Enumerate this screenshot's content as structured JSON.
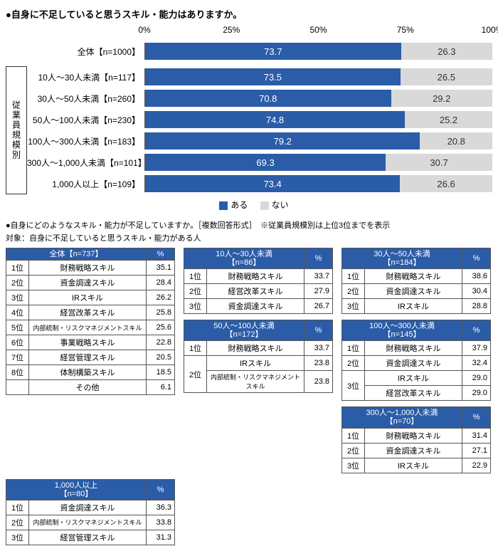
{
  "colors": {
    "primary": "#2b5ca8",
    "secondary": "#d9d9d9",
    "border": "#555555",
    "text_on_primary": "#ffffff",
    "text": "#000000",
    "background": "#ffffff"
  },
  "chart": {
    "title": "●自身に不足していると思うスキル・能力はありますか。",
    "type": "stacked-horizontal-bar",
    "x_axis": {
      "min": 0,
      "max": 100,
      "ticks": [
        0,
        25,
        50,
        75,
        100
      ],
      "tick_labels": [
        "0%",
        "25%",
        "50%",
        "75%",
        "100%"
      ]
    },
    "legend": {
      "yes": "ある",
      "no": "ない"
    },
    "group_label": "従業員規模別",
    "rows": [
      {
        "label": "全体【n=1000】",
        "yes": 73.7,
        "no": 26.3,
        "group": false
      },
      {
        "label": "10人～30人未満【n=117】",
        "yes": 73.5,
        "no": 26.5,
        "group": true
      },
      {
        "label": "30人～50人未満【n=260】",
        "yes": 70.8,
        "no": 29.2,
        "group": true
      },
      {
        "label": "50人～100人未満【n=230】",
        "yes": 74.8,
        "no": 25.2,
        "group": true
      },
      {
        "label": "100人～300人未満【n=183】",
        "yes": 79.2,
        "no": 20.8,
        "group": true
      },
      {
        "label": "300人～1,000人未満【n=101】",
        "yes": 69.3,
        "no": 30.7,
        "group": true
      },
      {
        "label": "1,000人以上【n=109】",
        "yes": 73.4,
        "no": 26.6,
        "group": true
      }
    ]
  },
  "tables": {
    "title": "●自身にどのようなスキル・能力が不足していますか。［複数回答形式］　※従業員規模別は上位3位までを表示",
    "target_note": "対象：自身に不足していると思うスキル・能力がある人",
    "pct_header": "%",
    "overall": {
      "header": "全体【n=737】",
      "rows": [
        {
          "rank": "1位",
          "skill": "財務戦略スキル",
          "pct": 35.1
        },
        {
          "rank": "2位",
          "skill": "資金調達スキル",
          "pct": 28.4
        },
        {
          "rank": "3位",
          "skill": "IRスキル",
          "pct": 26.2
        },
        {
          "rank": "4位",
          "skill": "経営改革スキル",
          "pct": 25.8
        },
        {
          "rank": "5位",
          "skill": "内部統制・リスクマネジメントスキル",
          "pct": 25.6,
          "small": true
        },
        {
          "rank": "6位",
          "skill": "事業戦略スキル",
          "pct": 22.8
        },
        {
          "rank": "7位",
          "skill": "経営管理スキル",
          "pct": 20.5
        },
        {
          "rank": "8位",
          "skill": "体制構築スキル",
          "pct": 18.5
        },
        {
          "rank": "",
          "skill": "その他",
          "pct": 6.1
        }
      ]
    },
    "groups": [
      {
        "header": "10人～30人未満\n【n=86】",
        "rows": [
          {
            "rank": "1位",
            "skill": "財務戦略スキル",
            "pct": 33.7
          },
          {
            "rank": "2位",
            "skill": "経営改革スキル",
            "pct": 27.9
          },
          {
            "rank": "3位",
            "skill": "資金調達スキル",
            "pct": 26.7
          }
        ]
      },
      {
        "header": "30人～50人未満\n【n=184】",
        "rows": [
          {
            "rank": "1位",
            "skill": "財務戦略スキル",
            "pct": 38.6
          },
          {
            "rank": "2位",
            "skill": "資金調達スキル",
            "pct": 30.4
          },
          {
            "rank": "3位",
            "skill": "IRスキル",
            "pct": 28.8
          }
        ]
      },
      {
        "header": "50人～100人未満\n【n=172】",
        "rows": [
          {
            "rank": "1位",
            "skill": "財務戦略スキル",
            "pct": 33.7
          },
          {
            "rank": "2位",
            "rowspan": 2,
            "skill": "IRスキル",
            "pct": 23.8
          },
          {
            "skill": "内部統制・リスクマネジメントスキル",
            "pct": 23.8,
            "small": true
          }
        ]
      },
      {
        "header": "100人～300人未満\n【n=145】",
        "rows": [
          {
            "rank": "1位",
            "skill": "財務戦略スキル",
            "pct": 37.9
          },
          {
            "rank": "2位",
            "skill": "資金調達スキル",
            "pct": 32.4
          },
          {
            "rank": "3位",
            "rowspan": 2,
            "skill": "IRスキル",
            "pct": 29.0
          },
          {
            "skill": "経営改革スキル",
            "pct": 29.0
          }
        ]
      },
      {
        "header": "300人～1,000人未満\n【n=70】",
        "rows": [
          {
            "rank": "1位",
            "skill": "財務戦略スキル",
            "pct": 31.4
          },
          {
            "rank": "2位",
            "skill": "資金調達スキル",
            "pct": 27.1
          },
          {
            "rank": "3位",
            "skill": "IRスキル",
            "pct": 22.9
          }
        ]
      },
      {
        "header": "1,000人以上\n【n=80】",
        "rows": [
          {
            "rank": "1位",
            "skill": "資金調達スキル",
            "pct": 36.3
          },
          {
            "rank": "2位",
            "skill": "内部統制・リスクマネジメントスキル",
            "pct": 33.8,
            "small": true
          },
          {
            "rank": "3位",
            "skill": "経営管理スキル",
            "pct": 31.3
          }
        ]
      }
    ]
  }
}
